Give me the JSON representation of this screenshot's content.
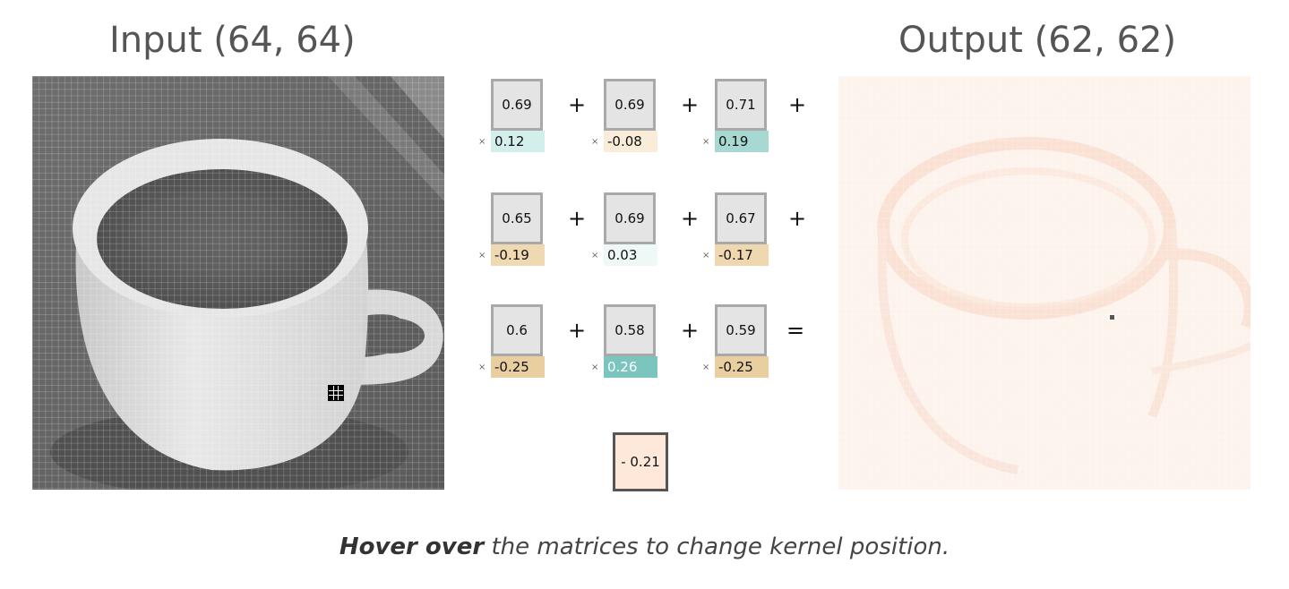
{
  "input_title": "Input (64, 64)",
  "output_title": "Output (62, 62)",
  "kernel": {
    "rows": [
      {
        "values": [
          "0.69",
          "0.69",
          "0.71"
        ],
        "weights": [
          "0.12",
          "-0.08",
          "0.19"
        ],
        "ops": [
          "+",
          "+",
          "+"
        ]
      },
      {
        "values": [
          "0.65",
          "0.69",
          "0.67"
        ],
        "weights": [
          "-0.19",
          "0.03",
          "-0.17"
        ],
        "ops": [
          "+",
          "+",
          "+"
        ]
      },
      {
        "values": [
          "0.6",
          "0.58",
          "0.59"
        ],
        "weights": [
          "-0.25",
          "0.26",
          "-0.25"
        ],
        "ops": [
          "+",
          "+",
          "="
        ]
      }
    ],
    "weight_colors": [
      [
        "#d3efec",
        "#f9ecd9",
        "#a7d8d1"
      ],
      [
        "#efd9b3",
        "#eef8f6",
        "#efd8b0"
      ],
      [
        "#e9cf9f",
        "#7cc5bf",
        "#e9cf9f"
      ]
    ],
    "multiply_symbol": "×"
  },
  "result": "- 0.21",
  "caption": {
    "bold": "Hover over",
    "rest": " the matrices to change kernel position."
  }
}
